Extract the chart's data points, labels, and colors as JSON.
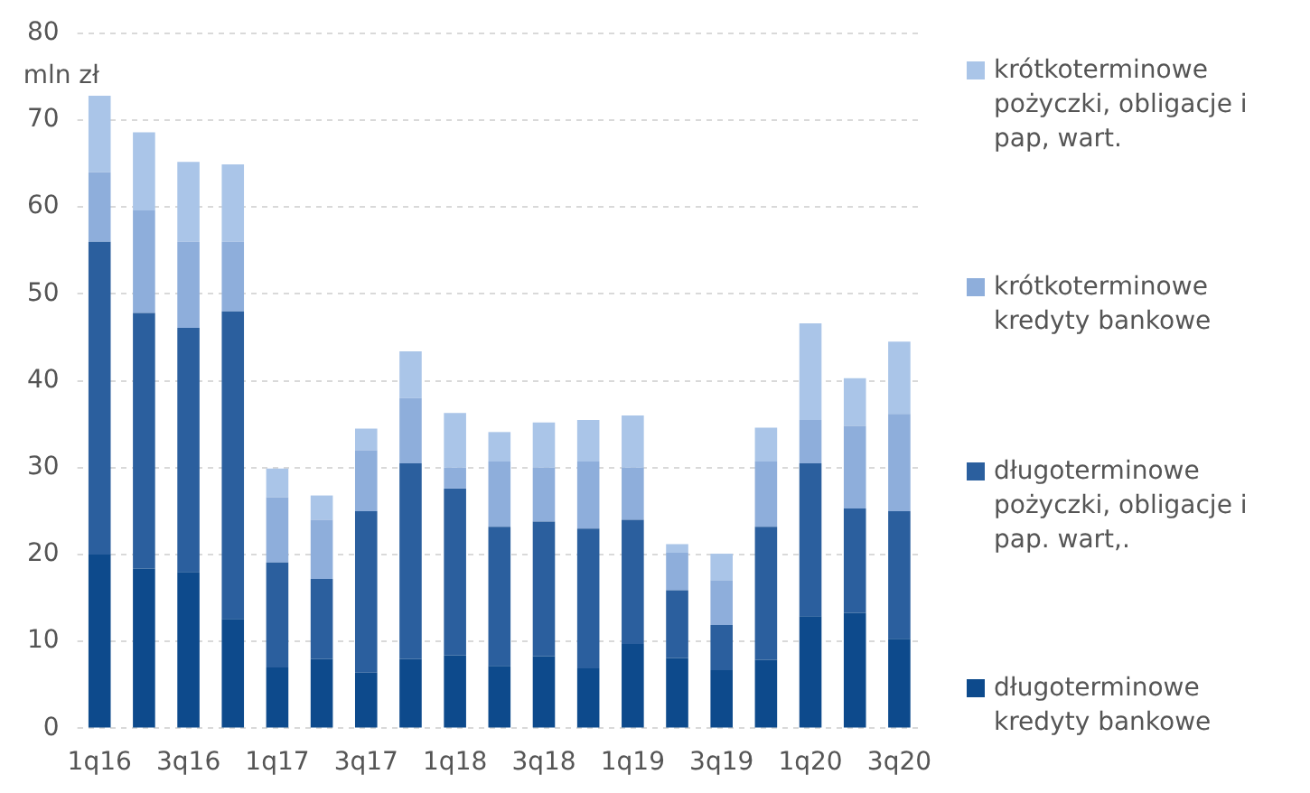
{
  "chart_data": {
    "type": "bar",
    "stacked": true,
    "ylabel": "mln zł",
    "categories": [
      "1q16",
      null,
      "3q16",
      null,
      "1q17",
      null,
      "3q17",
      null,
      "1q18",
      null,
      "3q18",
      null,
      "1q19",
      null,
      "3q19",
      null,
      "1q20",
      null,
      "3q20"
    ],
    "series": [
      {
        "name": "długoterminowe kredyty bankowe",
        "color": "#0d4a8c",
        "values": [
          20,
          18.4,
          18,
          12.6,
          7,
          8,
          6.4,
          8,
          8.4,
          7.2,
          8.3,
          6.9,
          9.7,
          8.1,
          6.7,
          7.9,
          12.9,
          13.3,
          10.3
        ]
      },
      {
        "name": "długoterminowe pożyczki, obligacje i pap. wart,.",
        "color": "#2b5f9e",
        "values": [
          36,
          29.4,
          28.1,
          35.4,
          12.1,
          9.2,
          18.6,
          22.5,
          19.2,
          16,
          15.5,
          16.1,
          14.3,
          7.8,
          5.2,
          15.3,
          17.6,
          12,
          14.7
        ]
      },
      {
        "name": "krótkoterminowe kredyty bankowe",
        "color": "#8eaedb",
        "values": [
          8,
          11.8,
          9.9,
          8,
          7.5,
          6.8,
          7,
          7.5,
          2.4,
          7.5,
          6.2,
          7.7,
          6,
          4.3,
          5.1,
          7.5,
          5,
          9.5,
          11.2
        ]
      },
      {
        "name": "krótkoterminowe pożyczki, obligacje i pap, wart.",
        "color": "#aac5e8",
        "values": [
          8.8,
          9,
          9.2,
          8.9,
          3.3,
          2.8,
          2.5,
          5.4,
          6.3,
          3.4,
          5.2,
          4.8,
          6,
          1,
          3.1,
          3.9,
          11.1,
          5.5,
          8.3
        ]
      }
    ],
    "ylim": [
      0,
      80
    ],
    "yticks": [
      0,
      10,
      20,
      30,
      40,
      50,
      60,
      70,
      80
    ],
    "grid": "y",
    "legend": "right"
  }
}
